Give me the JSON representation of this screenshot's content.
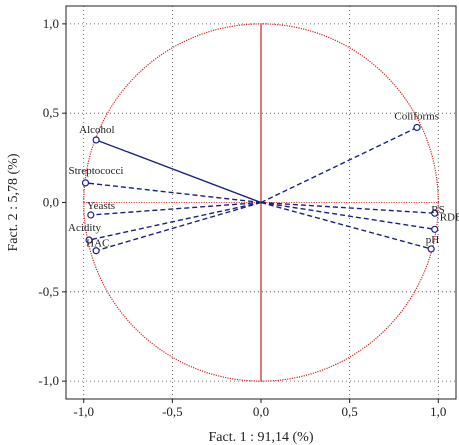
{
  "chart_data": {
    "type": "scatter",
    "subtype": "pca-correlation-circle",
    "title": "",
    "xlabel": "Fact. 1 : 91,14 (%)",
    "ylabel": "Fact. 2 : 5,78 (%)",
    "xlim": [
      -1.1,
      1.1
    ],
    "ylim": [
      -1.1,
      1.1
    ],
    "xticks": [
      -1.0,
      -0.5,
      0.0,
      0.5,
      1.0
    ],
    "yticks": [
      -1.0,
      -0.5,
      0.0,
      0.5,
      1.0
    ],
    "xtick_labels": [
      "-1,0",
      "-0,5",
      "0,0",
      "0,5",
      "1,0"
    ],
    "ytick_labels": [
      "-1,0",
      "-0,5",
      "0,0",
      "0,5",
      "1,0"
    ],
    "grid": true,
    "unit_circle": true,
    "circle_color": "#cc2222",
    "vector_color": "#1a237e",
    "points": [
      {
        "label": "Alcohol",
        "x": -0.93,
        "y": 0.35,
        "line": "solid"
      },
      {
        "label": "Streptococci",
        "x": -0.99,
        "y": 0.11,
        "line": "dashed"
      },
      {
        "label": "Yeasts",
        "x": -0.96,
        "y": -0.07,
        "line": "dashed"
      },
      {
        "label": "Acidity",
        "x": -0.97,
        "y": -0.21,
        "line": "dashed"
      },
      {
        "label": "HAC",
        "x": -0.93,
        "y": -0.27,
        "line": "dashed"
      },
      {
        "label": "Coliforms",
        "x": 0.88,
        "y": 0.42,
        "line": "dashed"
      },
      {
        "label": "RS",
        "x": 0.98,
        "y": -0.06,
        "line": "dashed"
      },
      {
        "label": "RDE",
        "x": 0.98,
        "y": -0.15,
        "line": "dashed"
      },
      {
        "label": "pH",
        "x": 0.96,
        "y": -0.26,
        "line": "dashed"
      }
    ]
  }
}
